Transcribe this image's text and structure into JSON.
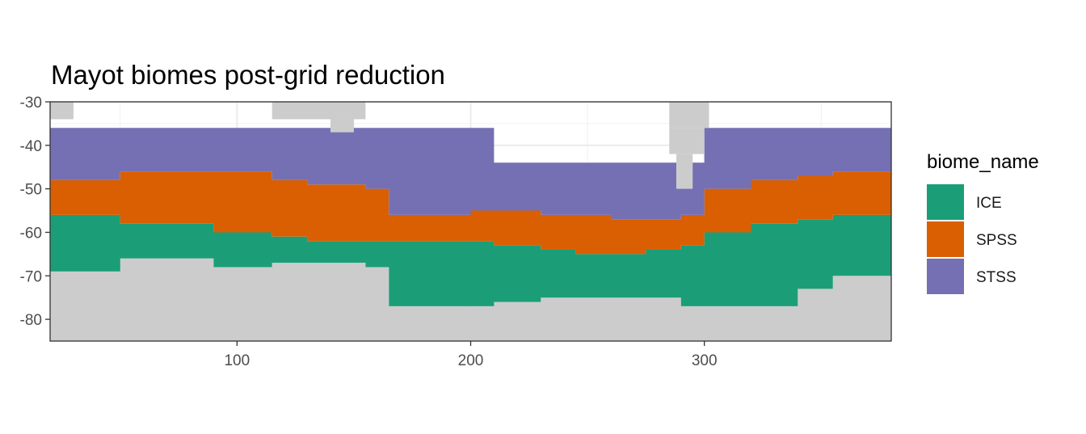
{
  "chart_data": {
    "type": "heatmap",
    "title": "Mayot biomes post-grid reduction",
    "xlabel": "",
    "ylabel": "",
    "xlim": [
      20,
      380
    ],
    "ylim": [
      -85,
      -30
    ],
    "x_ticks": [
      100,
      200,
      300
    ],
    "y_ticks": [
      -30,
      -40,
      -50,
      -60,
      -70,
      -80
    ],
    "x_tick_labels": [
      "100",
      "200",
      "300"
    ],
    "y_tick_labels": [
      "-30",
      "-40",
      "-50",
      "-60",
      "-70",
      "-80"
    ],
    "grid": true,
    "na_color": "#cccccc",
    "legend": {
      "title": "biome_name",
      "position": "right",
      "entries": [
        {
          "name": "ICE",
          "color": "#1b9e77"
        },
        {
          "name": "SPSS",
          "color": "#d95f02"
        },
        {
          "name": "STSS",
          "color": "#7570b3"
        }
      ]
    },
    "biome_boundaries": {
      "x": [
        20,
        50,
        90,
        115,
        130,
        155,
        165,
        185,
        200,
        210,
        230,
        245,
        260,
        275,
        290,
        300,
        320,
        340,
        355,
        380
      ],
      "stss_top_lat": [
        -36,
        -36,
        -36,
        -36,
        -36,
        -36,
        -36,
        -36,
        -36,
        -44,
        -44,
        -44,
        -44,
        -44,
        -44,
        -36,
        -36,
        -36,
        -36,
        -36
      ],
      "stss_spss_lat": [
        -48,
        -46,
        -46,
        -48,
        -49,
        -50,
        -56,
        -56,
        -55,
        -55,
        -56,
        -56,
        -57,
        -57,
        -56,
        -50,
        -48,
        -47,
        -46,
        -48
      ],
      "spss_ice_lat": [
        -56,
        -58,
        -60,
        -61,
        -62,
        -62,
        -62,
        -62,
        -62,
        -63,
        -64,
        -65,
        -65,
        -64,
        -63,
        -60,
        -58,
        -57,
        -56,
        -56
      ],
      "ice_land_lat": [
        -69,
        -66,
        -68,
        -67,
        -67,
        -68,
        -77,
        -77,
        -77,
        -76,
        -75,
        -75,
        -75,
        -75,
        -77,
        -77,
        -77,
        -73,
        -70,
        -70
      ]
    }
  }
}
